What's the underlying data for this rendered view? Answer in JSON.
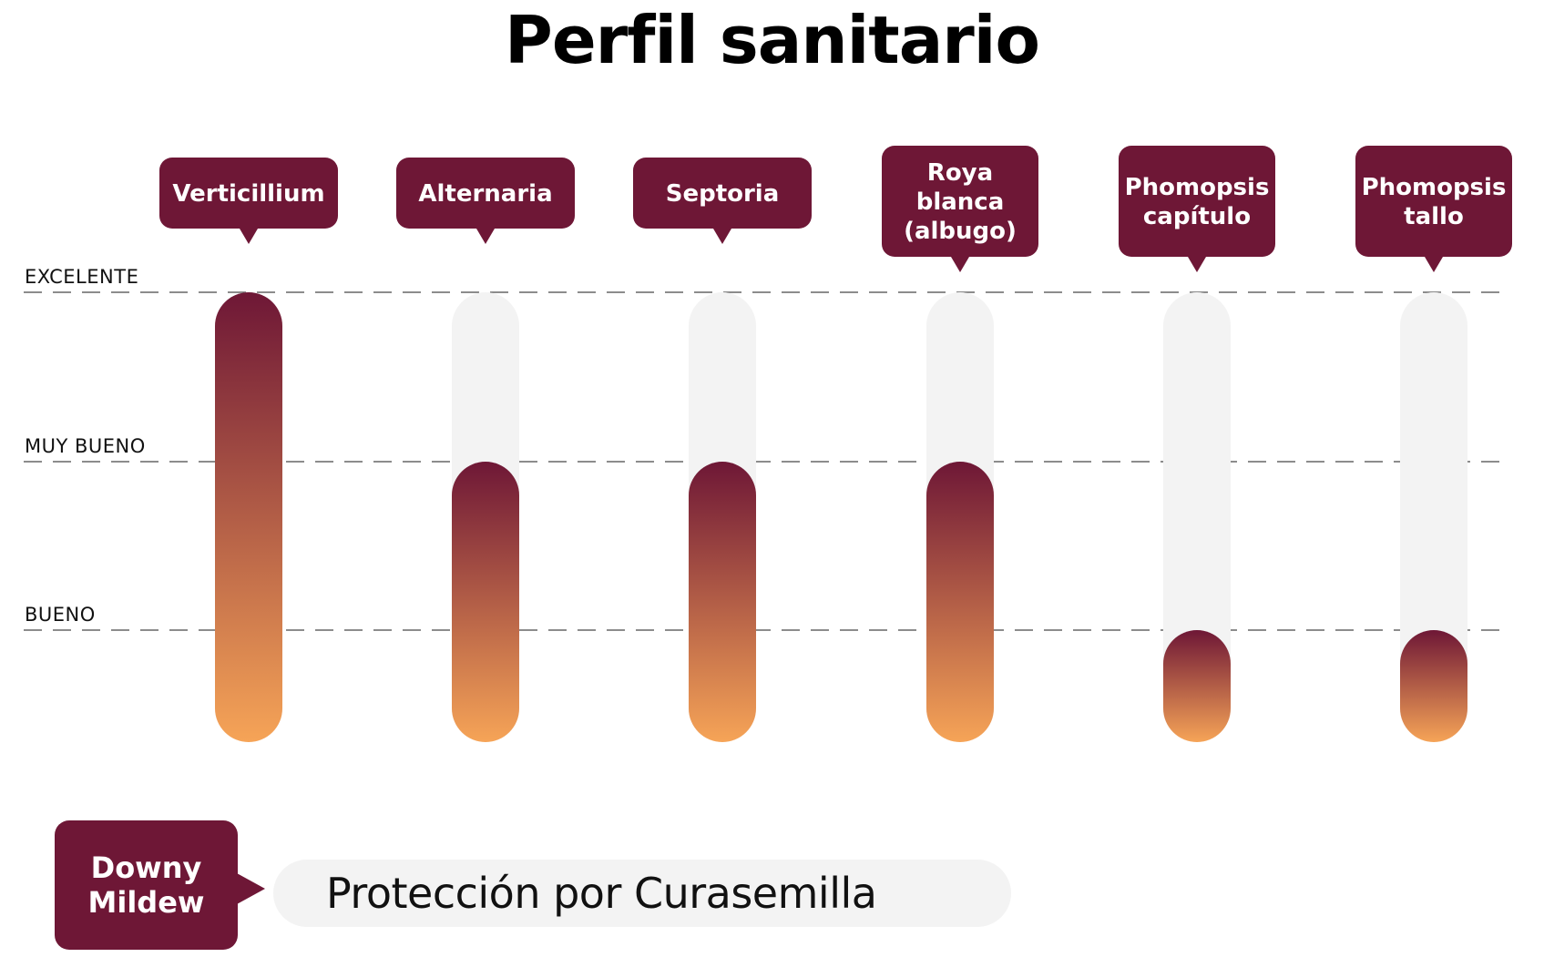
{
  "title": "Perfil sanitario",
  "chart_data": {
    "type": "bar",
    "levels": [
      "BUENO",
      "MUY BUENO",
      "EXCELENTE"
    ],
    "categories": [
      {
        "name": "Verticillium",
        "lines": [
          "Verticillium"
        ],
        "value": "EXCELENTE",
        "level_index": 3
      },
      {
        "name": "Alternaria",
        "lines": [
          "Alternaria"
        ],
        "value": "MUY BUENO",
        "level_index": 2
      },
      {
        "name": "Septoria",
        "lines": [
          "Septoria"
        ],
        "value": "MUY BUENO",
        "level_index": 2
      },
      {
        "name": "Roya blanca (albugo)",
        "lines": [
          "Roya",
          "blanca",
          "(albugo)"
        ],
        "value": "MUY BUENO",
        "level_index": 2
      },
      {
        "name": "Phomopsis capítulo",
        "lines": [
          "Phomopsis",
          "capítulo"
        ],
        "value": "BUENO",
        "level_index": 1
      },
      {
        "name": "Phomopsis tallo",
        "lines": [
          "Phomopsis",
          "tallo"
        ],
        "value": "BUENO",
        "level_index": 1
      }
    ],
    "ylim": [
      0,
      3
    ],
    "grid": true,
    "colors": {
      "bubble": "#6e1736",
      "gradient_top": "#6e1736",
      "gradient_bottom": "#f6a457",
      "track": "#f3f3f3",
      "gridline": "#666666"
    }
  },
  "legend": {
    "badge_lines": [
      "Downy",
      "Mildew"
    ],
    "text": "Protección por Curasemilla"
  }
}
